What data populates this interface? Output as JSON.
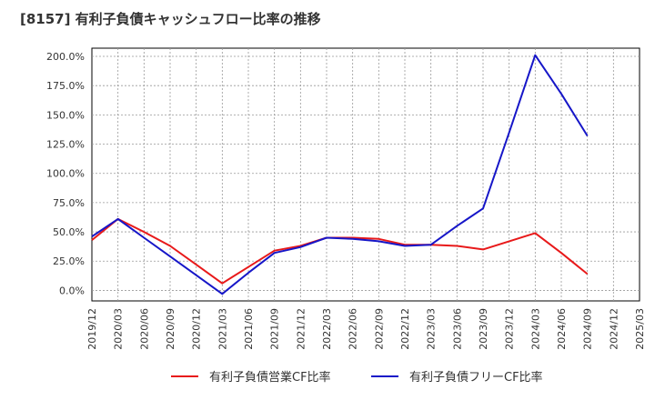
{
  "chart_data": {
    "type": "line",
    "title": "[8157]  有利子負債キャッシュフロー比率の推移",
    "xlabel": "",
    "ylabel": "",
    "ylim": [
      -0.09,
      2.07
    ],
    "yticks": [
      0.0,
      0.25,
      0.5,
      0.75,
      1.0,
      1.25,
      1.5,
      1.75,
      2.0
    ],
    "ytick_labels": [
      "0.0%",
      "25.0%",
      "50.0%",
      "75.0%",
      "100.0%",
      "125.0%",
      "150.0%",
      "175.0%",
      "200.0%"
    ],
    "categories": [
      "2019/12",
      "2020/03",
      "2020/06",
      "2020/09",
      "2020/12",
      "2021/03",
      "2021/06",
      "2021/09",
      "2021/12",
      "2022/03",
      "2022/06",
      "2022/09",
      "2022/12",
      "2023/03",
      "2023/06",
      "2023/09",
      "2023/12",
      "2024/03",
      "2024/06",
      "2024/09",
      "2024/12",
      "2025/03"
    ],
    "grid": true,
    "legend_position": "bottom",
    "series": [
      {
        "name": "有利子負債営業CF比率",
        "color": "#e8191a",
        "values": [
          0.43,
          0.61,
          0.5,
          0.38,
          0.22,
          0.06,
          0.2,
          0.34,
          0.38,
          0.45,
          0.45,
          0.44,
          0.39,
          0.39,
          0.38,
          0.35,
          0.42,
          0.49,
          0.32,
          0.14,
          null,
          null
        ]
      },
      {
        "name": "有利子負債フリーCF比率",
        "color": "#1616c8",
        "values": [
          0.46,
          0.61,
          0.45,
          0.29,
          0.13,
          -0.03,
          0.15,
          0.32,
          0.37,
          0.45,
          0.44,
          0.42,
          0.38,
          0.39,
          0.55,
          0.7,
          1.35,
          2.01,
          1.68,
          1.32,
          null,
          null
        ]
      }
    ]
  }
}
